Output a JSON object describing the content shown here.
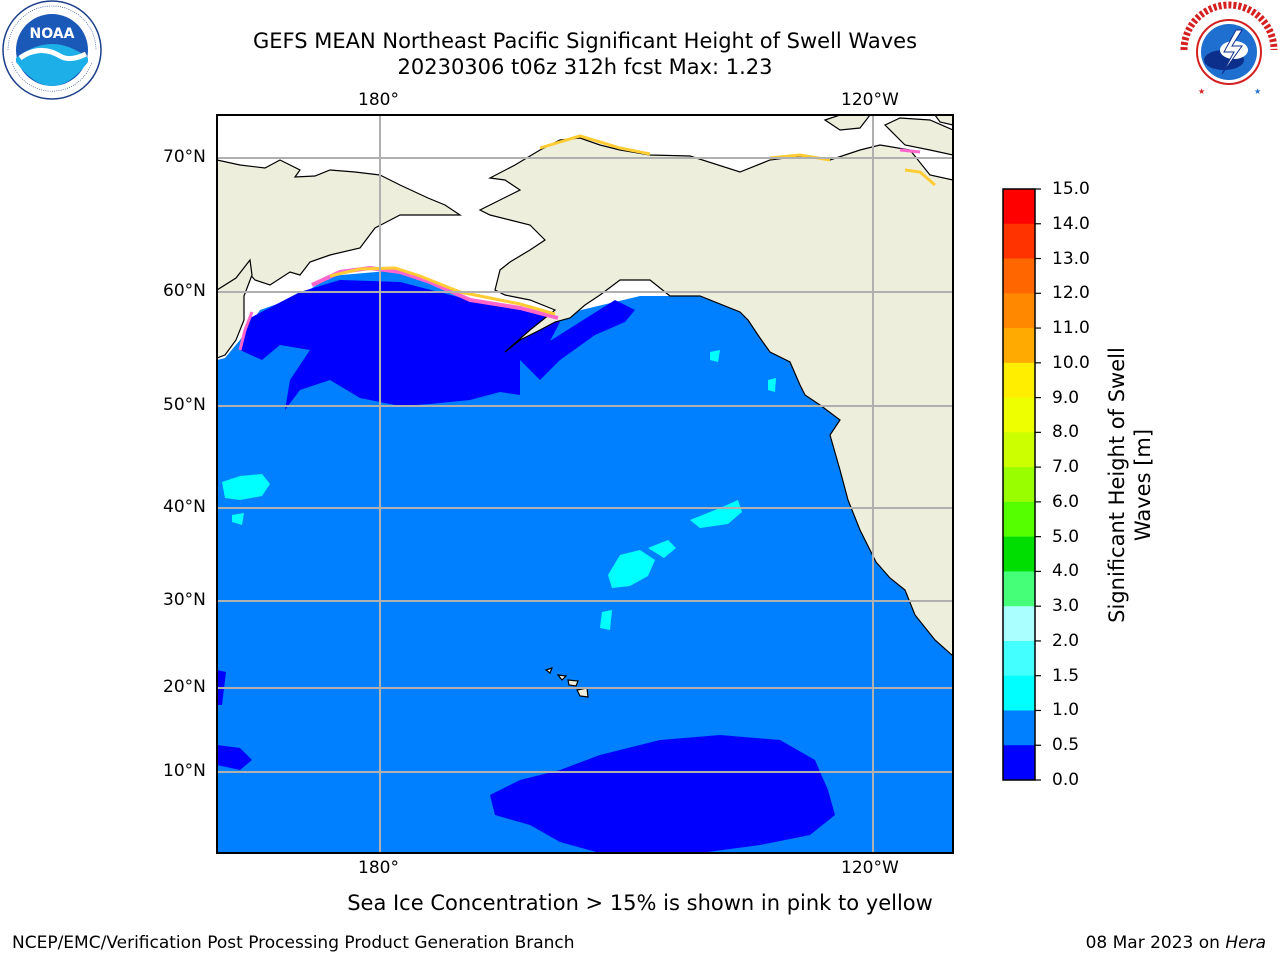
{
  "header": {
    "title_line1": "GEFS MEAN Northeast Pacific Significant Height of Swell Waves",
    "title_line2": "20230306 t06z 312h fcst    Max: 1.23"
  },
  "logos": {
    "left": {
      "name": "noaa",
      "text": "NOAA",
      "ring_text": "NATIONAL OCEANIC AND ATMOSPHERIC ADMINISTRATION · U.S. DEPARTMENT OF COMMERCE"
    },
    "right": {
      "name": "nws",
      "ring_text": "NATIONAL WEATHER SERVICE"
    }
  },
  "map": {
    "lon_labels_top": [
      "180°",
      "120°W"
    ],
    "lon_labels_bottom": [
      "180°",
      "120°W"
    ],
    "lat_labels": [
      "70°N",
      "60°N",
      "50°N",
      "40°N",
      "30°N",
      "20°N",
      "10°N"
    ]
  },
  "colorbar": {
    "title_lines": [
      "Significant Height of Swell",
      "Waves [m]"
    ],
    "ticks": [
      "15.0",
      "14.0",
      "13.0",
      "12.0",
      "11.0",
      "10.0",
      "9.0",
      "8.0",
      "7.0",
      "6.0",
      "5.0",
      "4.0",
      "3.0",
      "2.0",
      "1.5",
      "1.0",
      "0.5",
      "0.0"
    ],
    "colors": [
      "#ff0000",
      "#ff3300",
      "#ff6600",
      "#ff8800",
      "#ffaa00",
      "#ffee00",
      "#eeff00",
      "#ccff00",
      "#99ff00",
      "#55ff00",
      "#00dd00",
      "#44ff77",
      "#aaffff",
      "#44ffff",
      "#00ffff",
      "#0080ff",
      "#0000ff"
    ]
  },
  "colors": {
    "ocean_dark": "#0000ff",
    "ocean_main": "#0080ff",
    "ocean_light": "#00ffff",
    "land": "#eeeedd",
    "ice_pink": "#ff66cc",
    "ice_yellow": "#ffcc33"
  },
  "notes": {
    "sea_ice": "Sea Ice Concentration > 15% is shown in pink to yellow"
  },
  "footer": {
    "left": "NCEP/EMC/Verification Post Processing Product Generation Branch",
    "date": "08 Mar 2023 on ",
    "machine": "Hera"
  }
}
